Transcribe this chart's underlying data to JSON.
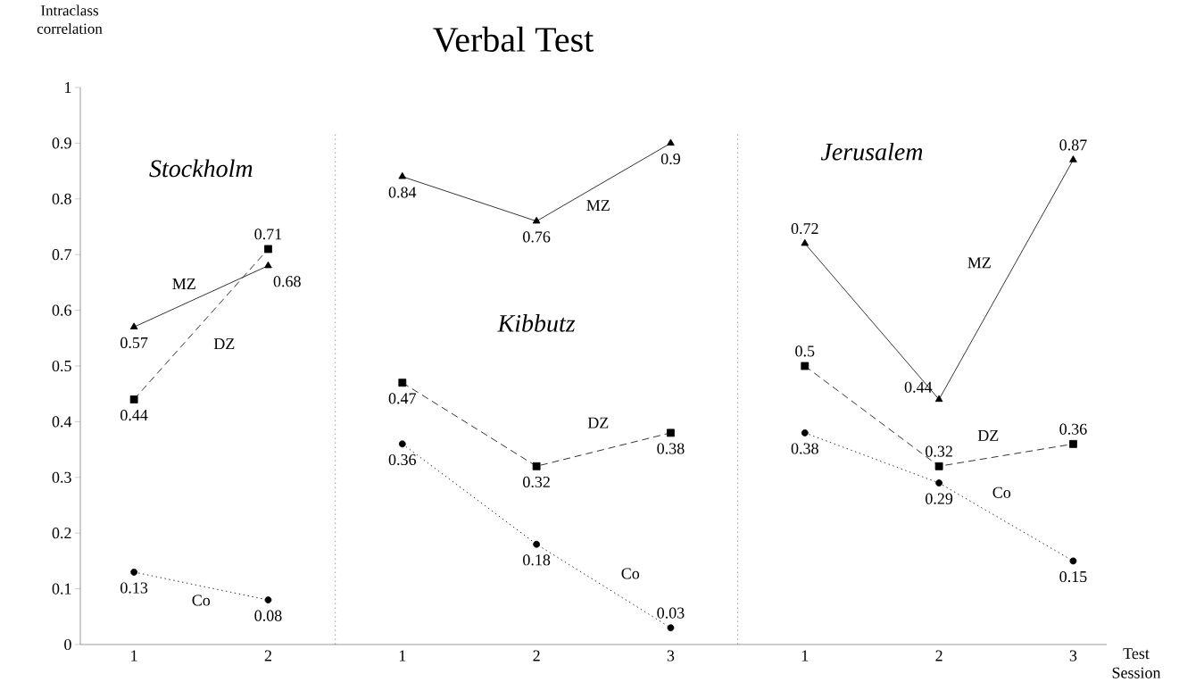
{
  "chart_data": {
    "type": "line",
    "title": "Verbal Test",
    "xlabel": "Test Session",
    "ylabel": "Intraclass correlation",
    "categories": [
      "1",
      "2",
      "1",
      "2",
      "3",
      "1",
      "2",
      "3"
    ],
    "series": [
      {
        "name": "MZ",
        "color": "#000000",
        "marker": "triangle",
        "line_style": "solid",
        "values": [
          0.57,
          0.68,
          null,
          null,
          null,
          null,
          null,
          null
        ]
      },
      {
        "name": "DZ",
        "color": "#000000",
        "marker": "square",
        "line_style": "dashed",
        "values": [
          0.44,
          0.71,
          null,
          null,
          null,
          null,
          null,
          null
        ]
      },
      {
        "name": "Co",
        "color": "#000000",
        "marker": "circle",
        "line_style": "dotted",
        "values": [
          0.13,
          0.08,
          null,
          null,
          null,
          null,
          null,
          null
        ]
      },
      {
        "name": "MZ",
        "color": "#000000",
        "marker": "triangle",
        "line_style": "solid",
        "values": [
          null,
          null,
          0.84,
          0.76,
          0.9,
          null,
          null,
          null
        ]
      },
      {
        "name": "DZ",
        "color": "#000000",
        "marker": "square",
        "line_style": "dashed",
        "values": [
          null,
          null,
          0.47,
          0.32,
          0.38,
          null,
          null,
          null
        ]
      },
      {
        "name": "Co",
        "color": "#000000",
        "marker": "circle",
        "line_style": "dotted",
        "values": [
          null,
          null,
          0.36,
          0.18,
          0.03,
          null,
          null,
          null
        ]
      },
      {
        "name": "MZ",
        "color": "#000000",
        "marker": "triangle",
        "line_style": "solid",
        "values": [
          null,
          null,
          null,
          null,
          null,
          0.72,
          0.44,
          0.87
        ]
      },
      {
        "name": "DZ",
        "color": "#000000",
        "marker": "square",
        "line_style": "dashed",
        "values": [
          null,
          null,
          null,
          null,
          null,
          0.5,
          0.32,
          0.36
        ]
      },
      {
        "name": "Co",
        "color": "#000000",
        "marker": "circle",
        "line_style": "dotted",
        "values": [
          null,
          null,
          null,
          null,
          null,
          0.38,
          0.29,
          0.15
        ]
      }
    ],
    "ylim": [
      0,
      1
    ],
    "yticks": [
      0,
      0.1,
      0.2,
      0.3,
      0.4,
      0.5,
      0.6,
      0.7,
      0.8,
      0.9,
      1
    ],
    "data_labels": true,
    "annotations": [
      "Stockholm",
      "Kibbutz",
      "Jerusalem"
    ]
  }
}
